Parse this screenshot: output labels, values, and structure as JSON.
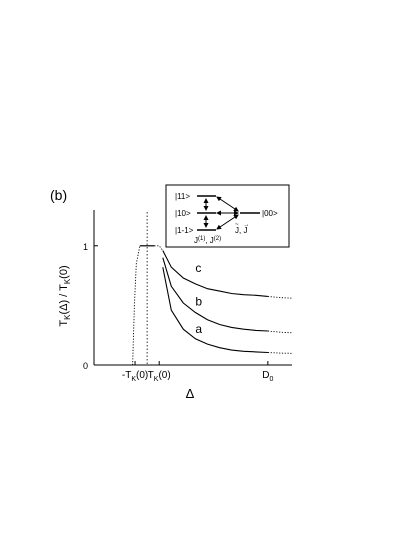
{
  "panel_label": "(b)",
  "chart_data": {
    "type": "line",
    "ylabel": "T_K(Δ) / T_K(0)",
    "xlabel": "Δ",
    "x_ticks": [
      {
        "label": "-T",
        "sub": "K",
        "tail": "(0)",
        "value": -1
      },
      {
        "label": "T",
        "sub": "K",
        "tail": "(0)",
        "value": 1
      },
      {
        "label": "D",
        "sub": "0",
        "tail": "",
        "value": 10
      }
    ],
    "y_ticks": [
      {
        "label": "0",
        "value": 0
      },
      {
        "label": "1",
        "value": 1
      }
    ],
    "xlim": [
      -4.4,
      12
    ],
    "ylim": [
      0,
      1.3
    ],
    "series": [
      {
        "name": "c",
        "solid": [
          [
            1.3,
            0.96
          ],
          [
            2,
            0.82
          ],
          [
            3,
            0.73
          ],
          [
            4,
            0.68
          ],
          [
            5,
            0.64
          ],
          [
            6,
            0.62
          ],
          [
            7,
            0.6
          ],
          [
            8,
            0.59
          ],
          [
            9,
            0.585
          ],
          [
            10,
            0.575
          ]
        ],
        "dotted": [
          [
            10,
            0.575
          ],
          [
            11,
            0.565
          ],
          [
            12,
            0.56
          ]
        ]
      },
      {
        "name": "b",
        "solid": [
          [
            1.3,
            0.9
          ],
          [
            2,
            0.66
          ],
          [
            3,
            0.52
          ],
          [
            4,
            0.44
          ],
          [
            5,
            0.38
          ],
          [
            6,
            0.34
          ],
          [
            7,
            0.315
          ],
          [
            8,
            0.3
          ],
          [
            9,
            0.29
          ],
          [
            10,
            0.285
          ]
        ],
        "dotted": [
          [
            10,
            0.285
          ],
          [
            11,
            0.275
          ],
          [
            12,
            0.27
          ]
        ]
      },
      {
        "name": "a",
        "solid": [
          [
            1.3,
            0.82
          ],
          [
            2,
            0.46
          ],
          [
            3,
            0.3
          ],
          [
            4,
            0.22
          ],
          [
            5,
            0.175
          ],
          [
            6,
            0.145
          ],
          [
            7,
            0.125
          ],
          [
            8,
            0.115
          ],
          [
            9,
            0.11
          ],
          [
            10,
            0.105
          ]
        ],
        "dotted": [
          [
            10,
            0.105
          ],
          [
            11,
            0.1
          ],
          [
            12,
            0.098
          ]
        ]
      }
    ],
    "common": {
      "plateau": [
        [
          -0.6,
          1
        ],
        [
          0.6,
          1
        ]
      ],
      "dotted_left": [
        [
          -1.2,
          0
        ],
        [
          -1.05,
          0.5
        ],
        [
          -0.9,
          0.85
        ],
        [
          -0.6,
          1
        ]
      ],
      "dotted_top": [
        [
          0.6,
          1
        ],
        [
          1.0,
          1.0
        ],
        [
          1.3,
          0.96
        ]
      ],
      "vline_x": 0
    },
    "inset": {
      "levels_left": [
        "|11>",
        "|10>",
        "|1-1>"
      ],
      "level_right": "|00>",
      "coupling_left": "J(1), J(2)",
      "coupling_right": "J, J"
    }
  }
}
